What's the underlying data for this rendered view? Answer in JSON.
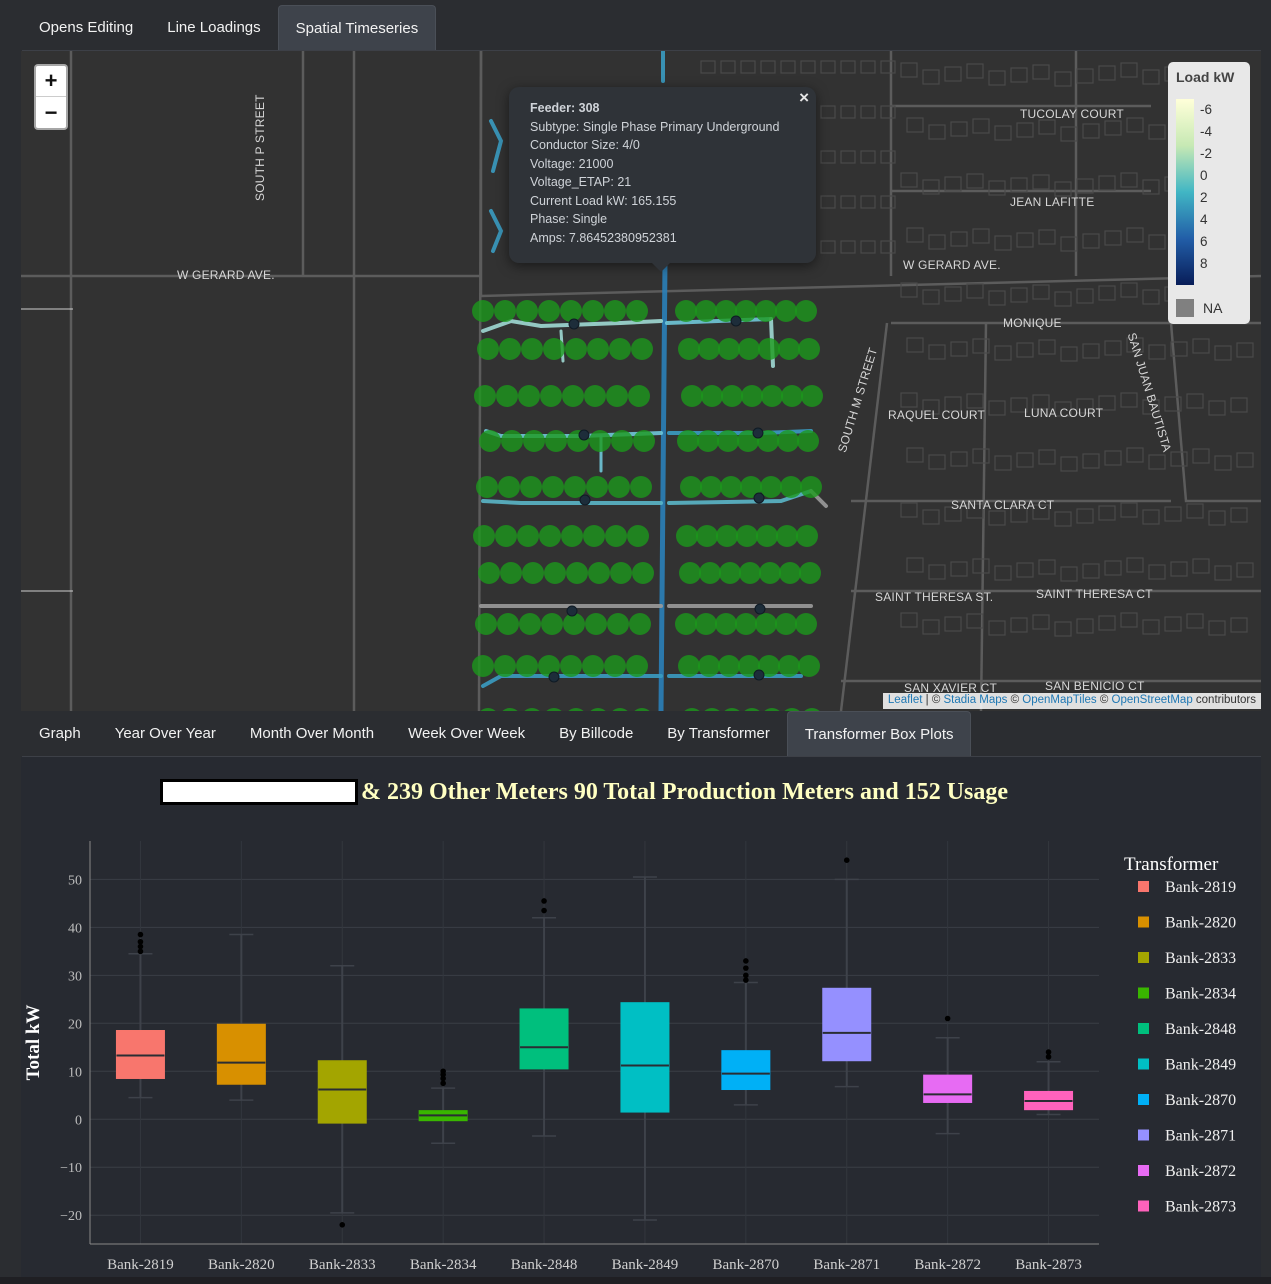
{
  "top_tabs": [
    {
      "label": "Opens Editing",
      "active": false
    },
    {
      "label": "Line Loadings",
      "active": false
    },
    {
      "label": "Spatial Timeseries",
      "active": true
    }
  ],
  "map": {
    "zoom_in": "+",
    "zoom_out": "−",
    "popup": {
      "lines": [
        "Feeder: 308",
        "Subtype: Single Phase Primary Underground",
        "Conductor Size: 4/0",
        "Voltage: 21000",
        "Voltage_ETAP: 21",
        "Current Load kW: 165.155",
        "Phase: Single",
        "Amps: 7.86452380952381"
      ],
      "close": "×"
    },
    "legend": {
      "title": "Load kW",
      "ticks": [
        "-6",
        "-4",
        "-2",
        "0",
        "2",
        "4",
        "6",
        "8"
      ],
      "na_label": "NA"
    },
    "attribution": {
      "leaflet": "Leaflet",
      "sep1": " | © ",
      "stadia": "Stadia Maps",
      "sep2": " © ",
      "omt": "OpenMapTiles",
      "sep3": " © ",
      "osm": "OpenStreetMap",
      "tail": " contributors"
    },
    "streets": [
      "SOUTH P STREET",
      "W GERARD AVE.",
      "TUCOLAY COURT",
      "JEAN LAFITTE",
      "W GERARD AVE.",
      "MONIQUE",
      "SAN JUAN BAUTISTA",
      "SOUTH M STREET",
      "RAQUEL COURT",
      "LUNA COURT",
      "SANTA CLARA CT",
      "SAINT THERESA ST.",
      "SAINT THERESA CT",
      "SAN XAVIER CT",
      "SAN BENICIO CT"
    ]
  },
  "bottom_tabs": [
    {
      "label": "Graph",
      "active": false
    },
    {
      "label": "Year Over Year",
      "active": false
    },
    {
      "label": "Month Over Month",
      "active": false
    },
    {
      "label": "Week Over Week",
      "active": false
    },
    {
      "label": "By Billcode",
      "active": false
    },
    {
      "label": "By Transformer",
      "active": false
    },
    {
      "label": "Transformer Box Plots",
      "active": true
    }
  ],
  "chart_data": {
    "type": "box",
    "title": "& 239 Other Meters 90 Total Production Meters and 152 Usage",
    "xlabel": "",
    "ylabel": "Total kW",
    "ylim": [
      -26,
      58
    ],
    "yticks": [
      -20,
      -10,
      0,
      10,
      20,
      30,
      40,
      50
    ],
    "ytick_labels": [
      "−20",
      "−10",
      "0",
      "10",
      "20",
      "30",
      "40",
      "50"
    ],
    "legend_title": "Transformer",
    "legend_position": "right",
    "categories": [
      "Bank-2819",
      "Bank-2820",
      "Bank-2833",
      "Bank-2834",
      "Bank-2848",
      "Bank-2849",
      "Bank-2870",
      "Bank-2871",
      "Bank-2872",
      "Bank-2873"
    ],
    "series": [
      {
        "name": "Bank-2819",
        "color": "#f8766d",
        "q1": 8.5,
        "median": 13.3,
        "q3": 18.5,
        "whisker_low": 4.5,
        "whisker_high": 34.5,
        "outliers": [
          35,
          36,
          37,
          38.5
        ]
      },
      {
        "name": "Bank-2820",
        "color": "#d89000",
        "q1": 7.3,
        "median": 11.8,
        "q3": 19.8,
        "whisker_low": 4,
        "whisker_high": 38.5,
        "outliers": []
      },
      {
        "name": "Bank-2833",
        "color": "#a3a500",
        "q1": -0.8,
        "median": 6.2,
        "q3": 12.2,
        "whisker_low": -19.5,
        "whisker_high": 32,
        "outliers": [
          -22
        ]
      },
      {
        "name": "Bank-2834",
        "color": "#39b600",
        "q1": -0.3,
        "median": 0.8,
        "q3": 1.8,
        "whisker_low": -5,
        "whisker_high": 6.5,
        "outliers": [
          7.5,
          8.5,
          9.3,
          10
        ]
      },
      {
        "name": "Bank-2848",
        "color": "#00bf7d",
        "q1": 10.5,
        "median": 15,
        "q3": 23,
        "whisker_low": -3.5,
        "whisker_high": 42,
        "outliers": [
          43.5,
          45.5
        ]
      },
      {
        "name": "Bank-2849",
        "color": "#00bfc4",
        "q1": 1.5,
        "median": 11.2,
        "q3": 24.3,
        "whisker_low": -21,
        "whisker_high": 50.5,
        "outliers": []
      },
      {
        "name": "Bank-2870",
        "color": "#00b0f6",
        "q1": 6.2,
        "median": 9.5,
        "q3": 14.3,
        "whisker_low": 3,
        "whisker_high": 28.5,
        "outliers": [
          29,
          30,
          31.5,
          33
        ]
      },
      {
        "name": "Bank-2871",
        "color": "#9590ff",
        "q1": 12.2,
        "median": 18,
        "q3": 27.3,
        "whisker_low": 6.8,
        "whisker_high": 50,
        "outliers": [
          54
        ]
      },
      {
        "name": "Bank-2872",
        "color": "#e76bf3",
        "q1": 3.5,
        "median": 5.2,
        "q3": 9.2,
        "whisker_low": -3,
        "whisker_high": 17,
        "outliers": [
          21
        ]
      },
      {
        "name": "Bank-2873",
        "color": "#ff62bc",
        "q1": 2,
        "median": 3.8,
        "q3": 5.8,
        "whisker_low": 1,
        "whisker_high": 12,
        "outliers": [
          13,
          14
        ]
      }
    ]
  }
}
